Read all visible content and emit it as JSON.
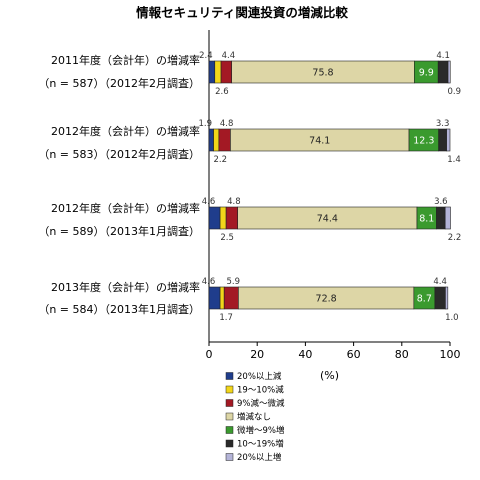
{
  "chart_data": {
    "type": "bar",
    "orientation": "horizontal",
    "stacked": true,
    "title": "情報セキュリティ関連投資の増減比較",
    "xlabel": "(%)",
    "xlim": [
      0,
      100
    ],
    "xticks": [
      "0",
      "20",
      "40",
      "60",
      "80",
      "100"
    ],
    "categories": [
      {
        "line1": "2011年度（会計年）の増減率",
        "line2": "（n = 587）（2012年2月調査）"
      },
      {
        "line1": "2012年度（会計年）の増減率",
        "line2": "（n = 583）（2012年2月調査）"
      },
      {
        "line1": "2012年度（会計年）の増減率",
        "line2": "（n = 589）（2013年1月調査）"
      },
      {
        "line1": "2013年度（会計年）の増減率",
        "line2": "（n = 584）（2013年1月調査）"
      }
    ],
    "series": [
      {
        "name": "20%以上減",
        "color": "#1f3d8c",
        "values": [
          2.4,
          1.9,
          4.6,
          4.6
        ]
      },
      {
        "name": "19～10%減",
        "color": "#f2d61a",
        "values": [
          2.6,
          2.2,
          2.5,
          1.7
        ]
      },
      {
        "name": "9%減～微減",
        "color": "#a31924",
        "values": [
          4.4,
          4.8,
          4.8,
          5.9
        ]
      },
      {
        "name": "増減なし",
        "color": "#ddd6a6",
        "values": [
          75.8,
          74.1,
          74.4,
          72.8
        ]
      },
      {
        "name": "微増～9%増",
        "color": "#3a9a2e",
        "values": [
          9.9,
          12.3,
          8.1,
          8.7
        ]
      },
      {
        "name": "10～19%増",
        "color": "#2a2a2a",
        "values": [
          4.1,
          3.3,
          3.6,
          4.4
        ]
      },
      {
        "name": "20%以上増",
        "color": "#b4b4d8",
        "values": [
          0.9,
          1.4,
          2.2,
          1.0
        ]
      }
    ]
  }
}
